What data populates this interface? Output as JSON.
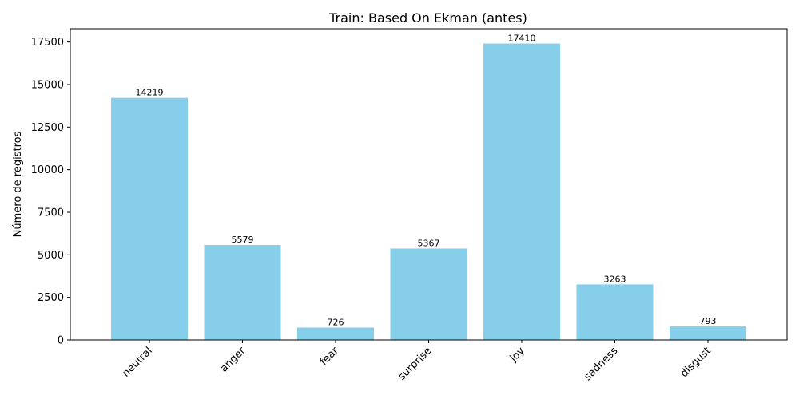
{
  "chart_data": {
    "type": "bar",
    "title": "Train: Based On Ekman (antes)",
    "xlabel": "",
    "ylabel": "Número de registros",
    "categories": [
      "neutral",
      "anger",
      "fear",
      "surprise",
      "joy",
      "sadness",
      "disgust"
    ],
    "values": [
      14219,
      5579,
      726,
      5367,
      17410,
      3263,
      793
    ],
    "ylim": [
      0,
      18280
    ],
    "yticks": [
      0,
      2500,
      5000,
      7500,
      10000,
      12500,
      15000,
      17500
    ],
    "bar_color": "#87ceeb",
    "grid": false,
    "data_labels": true
  }
}
